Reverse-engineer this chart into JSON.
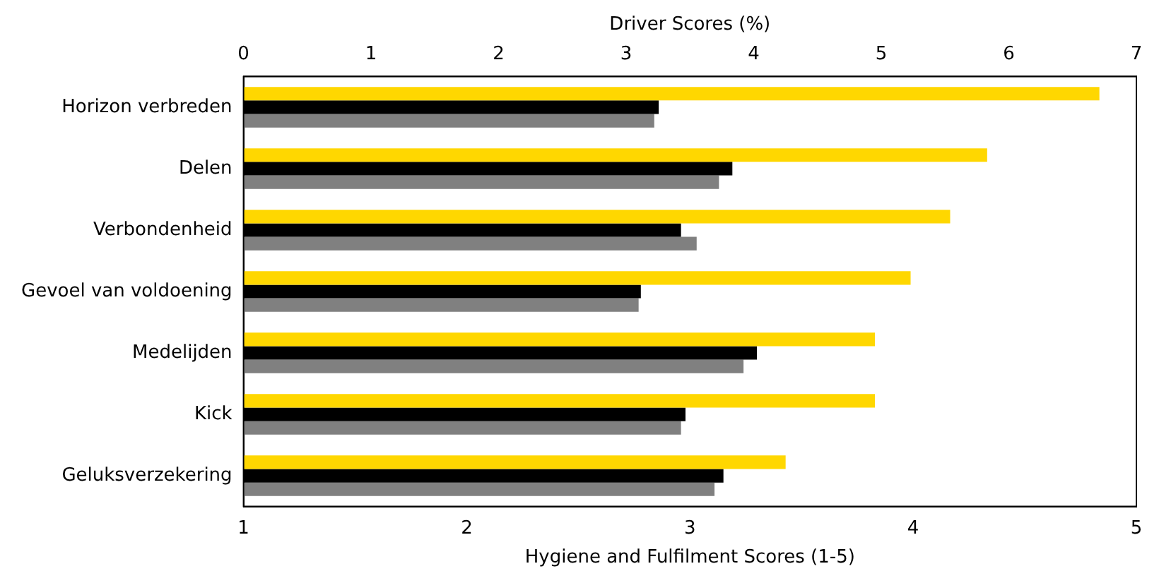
{
  "chart_data": {
    "type": "bar",
    "orientation": "horizontal",
    "categories": [
      "Horizon verbreden",
      "Delen",
      "Verbondenheid",
      "Gevoel van voldoening",
      "Medelijden",
      "Kick",
      "Geluksverzekering"
    ],
    "series": [
      {
        "color": "#ffd700",
        "axis": "x2",
        "values": [
          6.71,
          5.83,
          5.54,
          5.23,
          4.95,
          4.95,
          4.25
        ]
      },
      {
        "color": "#000000",
        "values": [
          2.86,
          3.19,
          2.96,
          2.78,
          3.3,
          2.98,
          3.15
        ]
      },
      {
        "color": "#808080",
        "values": [
          2.84,
          3.13,
          3.03,
          2.77,
          3.24,
          2.96,
          3.11
        ]
      }
    ],
    "xlabel": "Hygiene and Fulfilment Scores (1-5)",
    "xlim": [
      1,
      5
    ],
    "xticks": [
      1,
      2,
      3,
      4,
      5
    ],
    "x2label": "Driver Scores (%)",
    "x2lim": [
      0,
      7
    ],
    "x2ticks": [
      0,
      1,
      2,
      3,
      4,
      5,
      6,
      7
    ],
    "grid": false,
    "legend": false
  }
}
